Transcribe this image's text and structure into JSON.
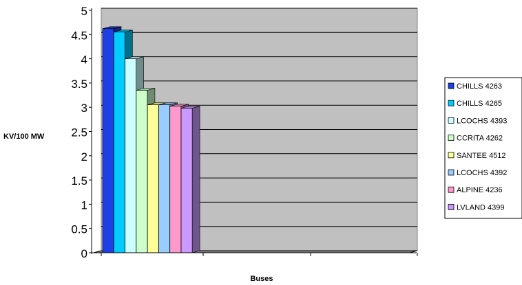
{
  "chart_data": {
    "type": "bar",
    "xlabel": "Buses",
    "ylabel": "KV/100 MW",
    "ylim": [
      0,
      5
    ],
    "y_ticks": [
      "0",
      "0.5",
      "1",
      "1.5",
      "2",
      "2.5",
      "3",
      "3.5",
      "4",
      "4.5",
      "5"
    ],
    "grid": true,
    "legend_position": "right",
    "series": [
      {
        "name": "CHILLS 4263",
        "values": [
          4.62
        ],
        "color": "#1f3fe6"
      },
      {
        "name": "CHILLS 4265",
        "values": [
          4.55
        ],
        "color": "#00ccff"
      },
      {
        "name": "LCOCHS 4393",
        "values": [
          4.0
        ],
        "color": "#ccffff"
      },
      {
        "name": "CCRITA 4262",
        "values": [
          3.35
        ],
        "color": "#ccffcc"
      },
      {
        "name": "SANTEE 4512",
        "values": [
          3.05
        ],
        "color": "#ffff99"
      },
      {
        "name": "LCOCHS 4392",
        "values": [
          3.05
        ],
        "color": "#99ccff"
      },
      {
        "name": "ALPINE 4236",
        "values": [
          3.02
        ],
        "color": "#ff99cc"
      },
      {
        "name": "LVLAND 4399",
        "values": [
          2.98
        ],
        "color": "#cc99ff"
      }
    ]
  }
}
